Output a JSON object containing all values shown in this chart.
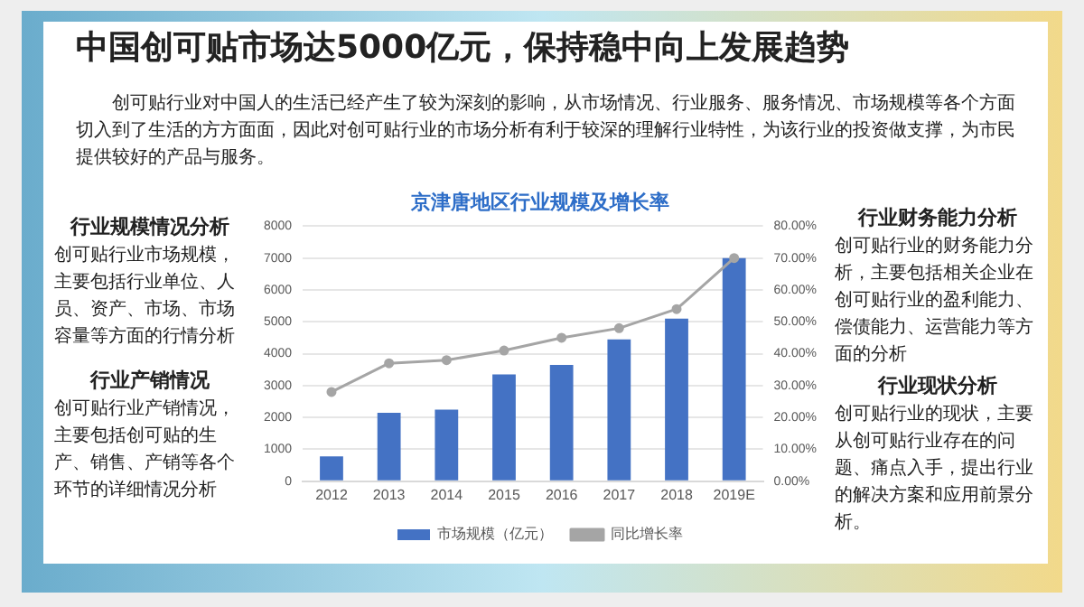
{
  "chart_data": {
    "type": "bar",
    "title": "京津唐地区行业规模及增长率",
    "categories": [
      "2012",
      "2013",
      "2014",
      "2015",
      "2016",
      "2017",
      "2018",
      "2019E"
    ],
    "series": [
      {
        "name": "市场规模（亿元）",
        "color": "#4472c4",
        "values": [
          780,
          2150,
          2250,
          3350,
          3650,
          4450,
          5100,
          7000
        ]
      },
      {
        "name": "同比增长率",
        "type": "line",
        "axis": "y2",
        "color": "#a5a5a5",
        "values": [
          28,
          37,
          38,
          41,
          45,
          48,
          54,
          70
        ]
      }
    ],
    "ylim": [
      0,
      8000
    ],
    "yticks": [
      0,
      1000,
      2000,
      3000,
      4000,
      5000,
      6000,
      7000,
      8000
    ],
    "y2lim": [
      0,
      80
    ],
    "y2ticks": [
      {
        "value": 0,
        "label": "0.00%"
      },
      {
        "value": 10,
        "label": "10.00%"
      },
      {
        "value": 20,
        "label": "20.00%"
      },
      {
        "value": 30,
        "label": "30.00%"
      },
      {
        "value": 40,
        "label": "40.00%"
      },
      {
        "value": 50,
        "label": "50.00%"
      },
      {
        "value": 60,
        "label": "60.00%"
      },
      {
        "value": 70,
        "label": "70.00%"
      },
      {
        "value": 80,
        "label": "80.00%"
      }
    ],
    "grid": "y",
    "legend": "bottom",
    "marker": "circle",
    "line_style": "solid",
    "annotations": [
      "中国创可贴市场达5000亿元，保持稳中向上发展趋势",
      "创可贴行业对中国人的生活已经产生了较为深刻的影响，从市场情况、行业服务、服务情况、市场规模等各个方面切入到了生活的方方面面，因此对创可贴行业的市场分析有利于较深的理解行业特性，为该行业的投资做支撑，为市民提供较好的产品与服务。",
      "行业规模情况分析",
      "创可贴行业市场规模，主要包括行业单位、人员、资产、市场、市场容量等方面的行情分析",
      "行业产销情况",
      "创可贴行业产销情况，主要包括创可贴的生产、销售、产销等各个环节的详细情况分析",
      "行业财务能力分析",
      "创可贴行业的财务能力分析，主要包括相关企业在创可贴行业的盈利能力、偿债能力、运营能力等方面的分析",
      "行业现状分析",
      "创可贴行业的现状，主要从创可贴行业存在的问题、痛点入手，提出行业的解决方案和应用前景分析。"
    ]
  }
}
